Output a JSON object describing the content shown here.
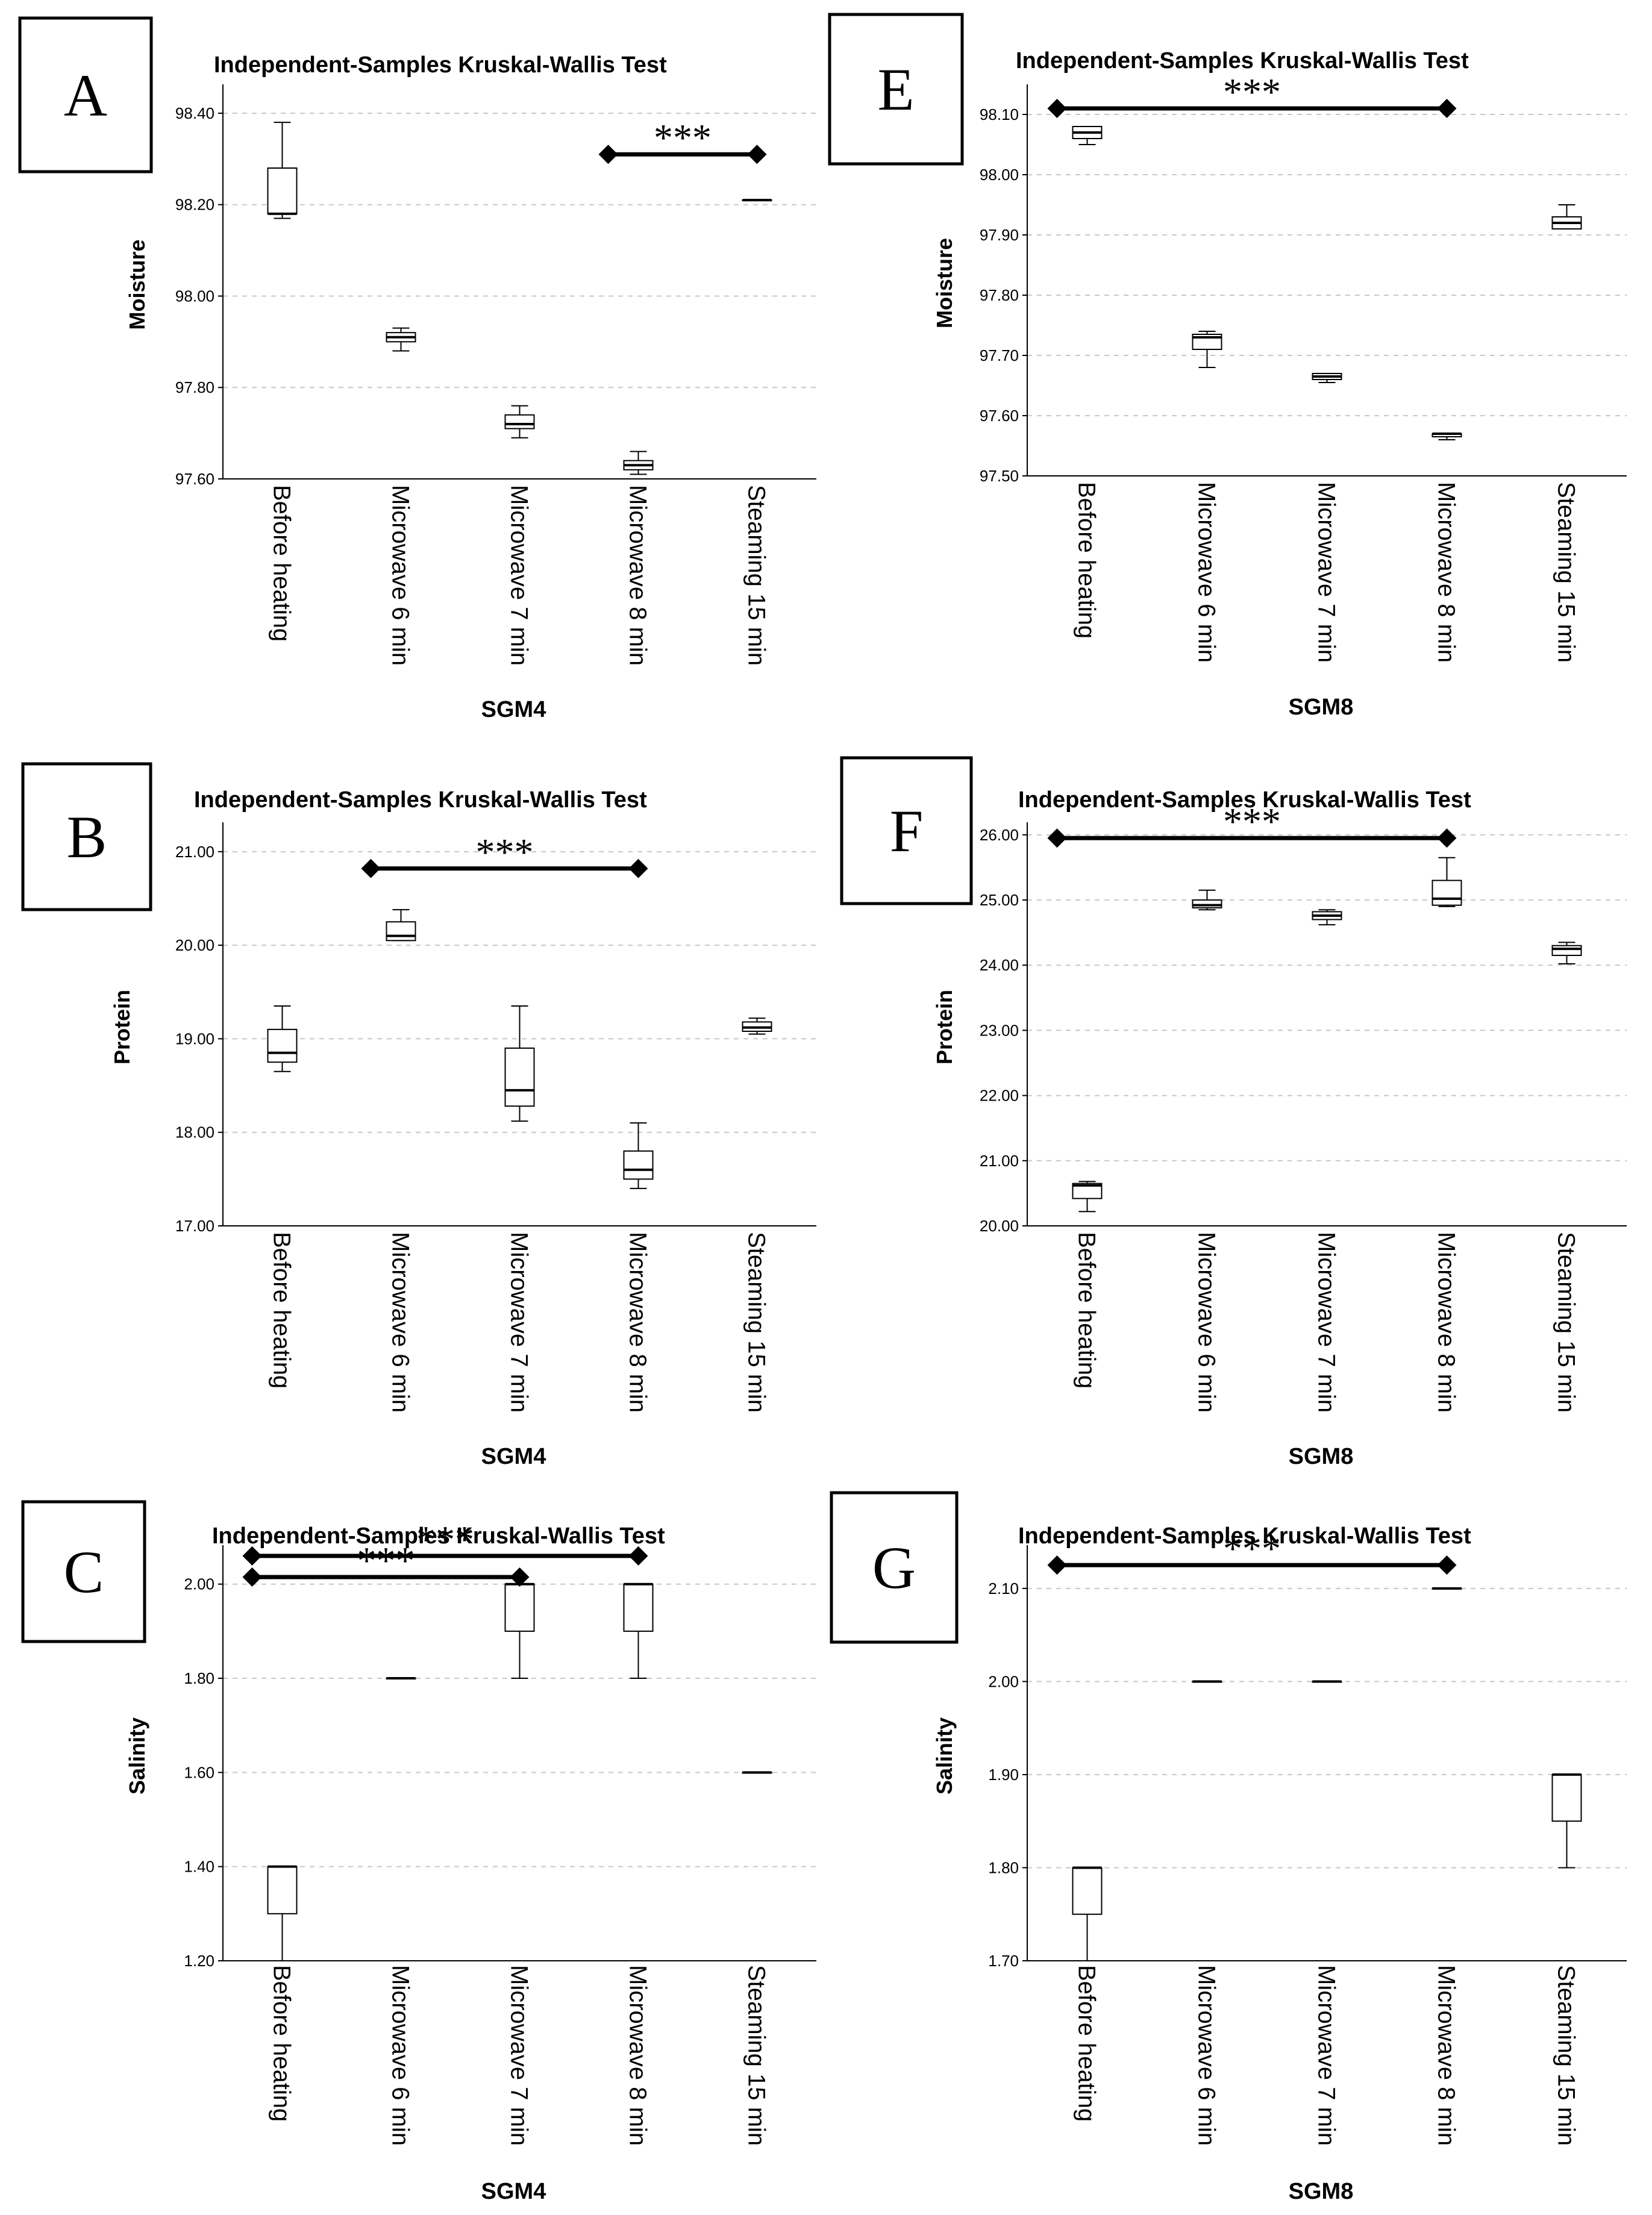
{
  "categories": [
    "Before heating",
    "Microwave 6 min",
    "Microwave 7 min",
    "Microwave 8 min",
    "Steaming 15 min"
  ],
  "chart_data": [
    {
      "id": "A",
      "type": "box",
      "panel_label": "A",
      "title": "Independent-Samples Kruskal-Wallis Test",
      "ylabel": "Moisture",
      "xlabel": "SGM4",
      "ylim": [
        97.6,
        98.45
      ],
      "yticks": [
        "97.60",
        "97.80",
        "98.00",
        "98.20",
        "98.40"
      ],
      "ytick_values": [
        97.6,
        97.8,
        98.0,
        98.2,
        98.4
      ],
      "boxes": [
        {
          "min": 98.17,
          "q1": 98.18,
          "median": 98.18,
          "q3": 98.28,
          "max": 98.38
        },
        {
          "min": 97.88,
          "q1": 97.9,
          "median": 97.91,
          "q3": 97.92,
          "max": 97.93
        },
        {
          "min": 97.69,
          "q1": 97.71,
          "median": 97.72,
          "q3": 97.74,
          "max": 97.76
        },
        {
          "min": 97.61,
          "q1": 97.62,
          "median": 97.63,
          "q3": 97.64,
          "max": 97.66
        },
        {
          "min": 98.21,
          "q1": 98.21,
          "median": 98.21,
          "q3": 98.21,
          "max": 98.21
        }
      ],
      "significance": [
        {
          "from": 3,
          "to": 4,
          "y": 98.31,
          "label": "***"
        }
      ]
    },
    {
      "id": "E",
      "type": "box",
      "panel_label": "E",
      "title": "Independent-Samples Kruskal-Wallis Test",
      "ylabel": "Moisture",
      "xlabel": "SGM8",
      "ylim": [
        97.5,
        98.14
      ],
      "yticks": [
        "97.50",
        "97.60",
        "97.70",
        "97.80",
        "97.90",
        "98.00",
        "98.10"
      ],
      "ytick_values": [
        97.5,
        97.6,
        97.7,
        97.8,
        97.9,
        98.0,
        98.1
      ],
      "boxes": [
        {
          "min": 98.05,
          "q1": 98.06,
          "median": 98.07,
          "q3": 98.08,
          "max": 98.08
        },
        {
          "min": 97.68,
          "q1": 97.71,
          "median": 97.73,
          "q3": 97.735,
          "max": 97.74
        },
        {
          "min": 97.655,
          "q1": 97.66,
          "median": 97.665,
          "q3": 97.67,
          "max": 97.67
        },
        {
          "min": 97.56,
          "q1": 97.565,
          "median": 97.57,
          "q3": 97.57,
          "max": 97.57
        },
        {
          "min": 97.91,
          "q1": 97.91,
          "median": 97.92,
          "q3": 97.93,
          "max": 97.95
        }
      ],
      "significance": [
        {
          "from": 0,
          "to": 3,
          "y": 98.11,
          "label": "***"
        }
      ]
    },
    {
      "id": "B",
      "type": "box",
      "panel_label": "B",
      "title": "Independent-Samples Kruskal-Wallis Test",
      "ylabel": "Protein",
      "xlabel": "SGM4",
      "ylim": [
        17.0,
        21.25
      ],
      "yticks": [
        "17.00",
        "18.00",
        "19.00",
        "20.00",
        "21.00"
      ],
      "ytick_values": [
        17.0,
        18.0,
        19.0,
        20.0,
        21.0
      ],
      "boxes": [
        {
          "min": 18.65,
          "q1": 18.75,
          "median": 18.85,
          "q3": 19.1,
          "max": 19.35
        },
        {
          "min": 20.05,
          "q1": 20.05,
          "median": 20.1,
          "q3": 20.25,
          "max": 20.38
        },
        {
          "min": 18.12,
          "q1": 18.28,
          "median": 18.45,
          "q3": 18.9,
          "max": 19.35
        },
        {
          "min": 17.4,
          "q1": 17.5,
          "median": 17.6,
          "q3": 17.8,
          "max": 18.1
        },
        {
          "min": 19.05,
          "q1": 19.08,
          "median": 19.12,
          "q3": 19.18,
          "max": 19.22
        }
      ],
      "significance": [
        {
          "from": 1,
          "to": 3,
          "y": 20.82,
          "label": "***"
        }
      ]
    },
    {
      "id": "F",
      "type": "box",
      "panel_label": "F",
      "title": "Independent-Samples Kruskal-Wallis Test",
      "ylabel": "Protein",
      "xlabel": "SGM8",
      "ylim": [
        20.0,
        26.1
      ],
      "yticks": [
        "20.00",
        "21.00",
        "22.00",
        "23.00",
        "24.00",
        "25.00",
        "26.00"
      ],
      "ytick_values": [
        20.0,
        21.0,
        22.0,
        23.0,
        24.0,
        25.0,
        26.0
      ],
      "boxes": [
        {
          "min": 20.22,
          "q1": 20.42,
          "median": 20.62,
          "q3": 20.65,
          "max": 20.68
        },
        {
          "min": 24.85,
          "q1": 24.88,
          "median": 24.92,
          "q3": 25.0,
          "max": 25.15
        },
        {
          "min": 24.62,
          "q1": 24.7,
          "median": 24.76,
          "q3": 24.82,
          "max": 24.85
        },
        {
          "min": 24.9,
          "q1": 24.92,
          "median": 25.02,
          "q3": 25.3,
          "max": 25.65
        },
        {
          "min": 24.02,
          "q1": 24.15,
          "median": 24.25,
          "q3": 24.3,
          "max": 24.35
        }
      ],
      "significance": [
        {
          "from": 0,
          "to": 3,
          "y": 25.95,
          "label": "***"
        }
      ]
    },
    {
      "id": "C",
      "type": "box",
      "panel_label": "C",
      "title": "Independent-Samples Kruskal-Wallis Test",
      "ylabel": "Salinity",
      "xlabel": "SGM4",
      "ylim": [
        1.2,
        2.07
      ],
      "yticks": [
        "1.20",
        "1.40",
        "1.60",
        "1.80",
        "2.00"
      ],
      "ytick_values": [
        1.2,
        1.4,
        1.6,
        1.8,
        2.0
      ],
      "boxes": [
        {
          "min": 1.2,
          "q1": 1.3,
          "median": 1.4,
          "q3": 1.4,
          "max": 1.4
        },
        {
          "min": 1.8,
          "q1": 1.8,
          "median": 1.8,
          "q3": 1.8,
          "max": 1.8
        },
        {
          "min": 1.8,
          "q1": 1.9,
          "median": 2.0,
          "q3": 2.0,
          "max": 2.0
        },
        {
          "min": 1.8,
          "q1": 1.9,
          "median": 2.0,
          "q3": 2.0,
          "max": 2.0
        },
        {
          "min": 1.6,
          "q1": 1.6,
          "median": 1.6,
          "q3": 1.6,
          "max": 1.6
        }
      ],
      "significance": [
        {
          "from": 0,
          "to": 3,
          "y": 2.06,
          "label": "***"
        },
        {
          "from": 0,
          "to": 2,
          "y": 2.015,
          "label": "***"
        }
      ]
    },
    {
      "id": "G",
      "type": "box",
      "panel_label": "G",
      "title": "Independent-Samples Kruskal-Wallis Test",
      "ylabel": "Salinity",
      "xlabel": "SGM8",
      "ylim": [
        1.7,
        2.14
      ],
      "yticks": [
        "1.70",
        "1.80",
        "1.90",
        "2.00",
        "2.10"
      ],
      "ytick_values": [
        1.7,
        1.8,
        1.9,
        2.0,
        2.1
      ],
      "boxes": [
        {
          "min": 1.7,
          "q1": 1.75,
          "median": 1.8,
          "q3": 1.8,
          "max": 1.8
        },
        {
          "min": 2.0,
          "q1": 2.0,
          "median": 2.0,
          "q3": 2.0,
          "max": 2.0
        },
        {
          "min": 2.0,
          "q1": 2.0,
          "median": 2.0,
          "q3": 2.0,
          "max": 2.0
        },
        {
          "min": 2.1,
          "q1": 2.1,
          "median": 2.1,
          "q3": 2.1,
          "max": 2.1
        },
        {
          "min": 1.8,
          "q1": 1.85,
          "median": 1.9,
          "q3": 1.9,
          "max": 1.9
        }
      ],
      "significance": [
        {
          "from": 0,
          "to": 3,
          "y": 2.125,
          "label": "***"
        }
      ]
    }
  ]
}
